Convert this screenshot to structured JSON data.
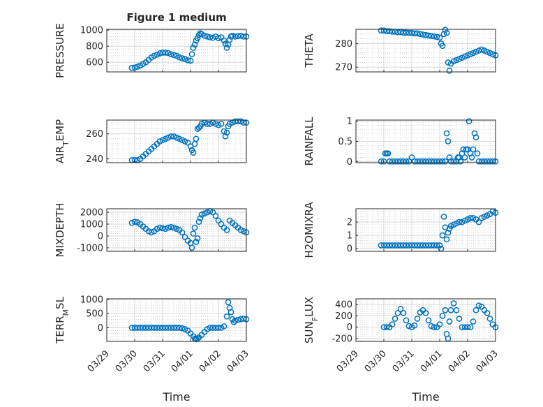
{
  "figure": {
    "title": "Figure 1 medium",
    "xlabel": "Time"
  },
  "colors": {
    "marker": "#0072BD",
    "axis": "#262626",
    "grid": "#bdbdbd"
  },
  "x_tick_labels": [
    "03/29",
    "03/30",
    "03/31",
    "04/01",
    "04/02",
    "04/03"
  ],
  "chart_data": [
    {
      "type": "scatter",
      "ylabel": "PRESSURE",
      "ylim": [
        480,
        1010
      ],
      "yticks": [
        600,
        800,
        1000
      ],
      "ytick_labels": [
        "600",
        "800",
        "1000"
      ],
      "x": [
        0.9,
        1.0,
        1.1,
        1.2,
        1.3,
        1.4,
        1.5,
        1.6,
        1.7,
        1.8,
        1.9,
        2.0,
        2.1,
        2.2,
        2.3,
        2.4,
        2.5,
        2.6,
        2.7,
        2.8,
        2.9,
        3.0,
        3.05,
        3.1,
        3.15,
        3.2,
        3.25,
        3.3,
        3.35,
        3.4,
        3.5,
        3.6,
        3.7,
        3.8,
        3.9,
        4.0,
        4.1,
        4.2,
        4.25,
        4.3,
        4.35,
        4.4,
        4.45,
        4.5,
        4.6,
        4.7,
        4.8,
        4.9,
        5.0
      ],
      "y": [
        530,
        535,
        545,
        560,
        580,
        600,
        630,
        660,
        680,
        695,
        710,
        720,
        720,
        715,
        700,
        690,
        680,
        660,
        650,
        640,
        625,
        620,
        700,
        780,
        820,
        870,
        900,
        940,
        960,
        950,
        930,
        920,
        910,
        905,
        920,
        900,
        910,
        870,
        830,
        780,
        820,
        880,
        920,
        930,
        920,
        925,
        930,
        920,
        920
      ]
    },
    {
      "type": "scatter",
      "ylabel": "THETA",
      "ylim": [
        268,
        286
      ],
      "yticks": [
        270,
        280
      ],
      "ytick_labels": [
        "270",
        "280"
      ],
      "x": [
        0.9,
        1.0,
        1.1,
        1.2,
        1.3,
        1.4,
        1.5,
        1.6,
        1.7,
        1.8,
        1.9,
        2.0,
        2.1,
        2.2,
        2.3,
        2.4,
        2.5,
        2.6,
        2.7,
        2.8,
        2.9,
        3.0,
        3.05,
        3.1,
        3.15,
        3.2,
        3.25,
        3.3,
        3.35,
        3.4,
        3.5,
        3.6,
        3.7,
        3.8,
        3.9,
        4.0,
        4.1,
        4.2,
        4.3,
        4.4,
        4.5,
        4.6,
        4.7,
        4.8,
        4.9,
        5.0
      ],
      "y": [
        285.5,
        285.5,
        285.2,
        285.2,
        285.0,
        285.0,
        284.8,
        284.8,
        284.6,
        284.6,
        284.5,
        284.5,
        284.3,
        284.3,
        284.0,
        283.8,
        283.6,
        283.4,
        283.2,
        283.0,
        282.8,
        282.5,
        280.0,
        279.0,
        284.0,
        285.8,
        284.5,
        272.0,
        268.5,
        271.5,
        272.5,
        273.0,
        273.5,
        274.0,
        274.5,
        275.0,
        275.5,
        276.0,
        276.5,
        277.0,
        277.5,
        277.0,
        276.5,
        276.0,
        275.5,
        275.0
      ]
    },
    {
      "type": "scatter",
      "ylabel": "AIR_TEMP",
      "ylim": [
        237,
        271
      ],
      "yticks": [
        240,
        260
      ],
      "ytick_labels": [
        "240",
        "260"
      ],
      "x": [
        0.9,
        1.0,
        1.1,
        1.2,
        1.3,
        1.4,
        1.5,
        1.6,
        1.7,
        1.8,
        1.9,
        2.0,
        2.1,
        2.2,
        2.3,
        2.4,
        2.5,
        2.6,
        2.7,
        2.8,
        2.9,
        3.0,
        3.05,
        3.1,
        3.15,
        3.2,
        3.25,
        3.3,
        3.35,
        3.4,
        3.5,
        3.6,
        3.7,
        3.8,
        3.9,
        4.0,
        4.1,
        4.2,
        4.25,
        4.3,
        4.35,
        4.4,
        4.5,
        4.6,
        4.7,
        4.8,
        4.9,
        5.0
      ],
      "y": [
        239,
        239,
        239,
        240,
        242,
        244,
        246,
        248,
        250,
        252,
        254,
        255,
        256,
        257,
        258,
        258,
        257,
        256,
        255,
        254,
        253,
        250,
        247,
        245,
        252,
        256,
        264,
        265,
        266,
        268,
        269,
        268,
        268,
        269,
        268,
        267,
        268,
        262,
        258,
        261,
        266,
        268,
        269,
        270,
        270,
        270,
        269,
        269
      ]
    },
    {
      "type": "scatter",
      "ylabel": "RAINFALL",
      "ylim": [
        -0.03,
        1.03
      ],
      "yticks": [
        0,
        0.5,
        1
      ],
      "ytick_labels": [
        "0",
        "0.5",
        "1"
      ],
      "x": [
        0.9,
        1.0,
        1.05,
        1.1,
        1.15,
        1.2,
        1.3,
        1.4,
        1.5,
        1.6,
        1.7,
        1.8,
        1.9,
        2.0,
        2.1,
        2.2,
        2.3,
        2.4,
        2.5,
        2.6,
        2.7,
        2.8,
        2.9,
        3.0,
        3.1,
        3.2,
        3.25,
        3.3,
        3.35,
        3.4,
        3.5,
        3.6,
        3.65,
        3.7,
        3.75,
        3.8,
        3.85,
        3.9,
        3.95,
        4.0,
        4.05,
        4.1,
        4.15,
        4.2,
        4.25,
        4.3,
        4.35,
        4.4,
        4.5,
        4.6,
        4.7,
        4.8,
        4.9,
        5.0
      ],
      "y": [
        0,
        0,
        0.2,
        0.2,
        0.2,
        0,
        0,
        0,
        0,
        0,
        0,
        0,
        0,
        0.1,
        0,
        0,
        0,
        0,
        0,
        0,
        0,
        0,
        0,
        0,
        0,
        0,
        0.7,
        0.5,
        0.1,
        0,
        0,
        0,
        0.1,
        0.1,
        0,
        0.2,
        0.3,
        0.1,
        0.3,
        0.3,
        1.0,
        0.2,
        0.1,
        0.3,
        0.7,
        0.6,
        0.2,
        0,
        0,
        0,
        0,
        0,
        0,
        0
      ]
    },
    {
      "type": "scatter",
      "ylabel": "MIXDEPTH",
      "ylim": [
        -1300,
        2300
      ],
      "yticks": [
        -1000,
        0,
        1000,
        2000
      ],
      "ytick_labels": [
        "-1000",
        "0",
        "1000",
        "2000"
      ],
      "x": [
        0.9,
        1.0,
        1.1,
        1.2,
        1.3,
        1.4,
        1.5,
        1.6,
        1.7,
        1.8,
        1.9,
        2.0,
        2.1,
        2.2,
        2.3,
        2.4,
        2.5,
        2.6,
        2.7,
        2.8,
        2.9,
        3.0,
        3.05,
        3.1,
        3.15,
        3.2,
        3.25,
        3.3,
        3.35,
        3.4,
        3.5,
        3.6,
        3.7,
        3.8,
        3.9,
        4.0,
        4.1,
        4.2,
        4.3,
        4.4,
        4.5,
        4.6,
        4.7,
        4.8,
        4.9,
        5.0
      ],
      "y": [
        1100,
        1200,
        1150,
        1000,
        800,
        600,
        400,
        300,
        400,
        600,
        700,
        650,
        600,
        700,
        750,
        700,
        600,
        500,
        300,
        -100,
        -400,
        -600,
        -1000,
        200,
        700,
        -500,
        -200,
        1200,
        1500,
        1800,
        1900,
        2000,
        2100,
        2000,
        1700,
        1300,
        1000,
        700,
        500,
        1300,
        1100,
        900,
        700,
        500,
        400,
        300
      ]
    },
    {
      "type": "scatter",
      "ylabel": "H2OMIXRA",
      "ylim": [
        -0.2,
        3.0
      ],
      "yticks": [
        0,
        1,
        2
      ],
      "ytick_labels": [
        "0",
        "1",
        "2"
      ],
      "x": [
        0.9,
        1.0,
        1.1,
        1.2,
        1.3,
        1.4,
        1.5,
        1.6,
        1.7,
        1.8,
        1.9,
        2.0,
        2.1,
        2.2,
        2.3,
        2.4,
        2.5,
        2.6,
        2.7,
        2.8,
        2.9,
        3.0,
        3.05,
        3.1,
        3.15,
        3.2,
        3.25,
        3.3,
        3.35,
        3.4,
        3.5,
        3.6,
        3.7,
        3.8,
        3.9,
        4.0,
        4.1,
        4.2,
        4.3,
        4.4,
        4.5,
        4.6,
        4.7,
        4.8,
        4.9,
        5.0
      ],
      "y": [
        0.25,
        0.25,
        0.25,
        0.25,
        0.25,
        0.25,
        0.25,
        0.25,
        0.25,
        0.25,
        0.25,
        0.25,
        0.25,
        0.25,
        0.25,
        0.25,
        0.25,
        0.25,
        0.25,
        0.25,
        0.25,
        0.25,
        0.0,
        1.0,
        2.4,
        1.6,
        0.7,
        1.2,
        1.5,
        1.7,
        1.8,
        1.9,
        2.0,
        2.0,
        2.1,
        2.2,
        2.3,
        2.3,
        2.2,
        2.0,
        2.3,
        2.4,
        2.5,
        2.6,
        2.8,
        2.7
      ]
    },
    {
      "type": "scatter",
      "ylabel": "TERR_MSL",
      "ylim": [
        -480,
        1020
      ],
      "yticks": [
        0,
        500,
        1000
      ],
      "ytick_labels": [
        "0",
        "500",
        "1000"
      ],
      "x": [
        0.9,
        1.0,
        1.1,
        1.2,
        1.3,
        1.4,
        1.5,
        1.6,
        1.7,
        1.8,
        1.9,
        2.0,
        2.1,
        2.2,
        2.3,
        2.4,
        2.5,
        2.6,
        2.7,
        2.8,
        2.9,
        3.0,
        3.1,
        3.15,
        3.2,
        3.25,
        3.3,
        3.4,
        3.5,
        3.6,
        3.7,
        3.8,
        3.9,
        4.0,
        4.1,
        4.2,
        4.3,
        4.35,
        4.4,
        4.45,
        4.5,
        4.55,
        4.6,
        4.7,
        4.8,
        4.9,
        5.0
      ],
      "y": [
        0,
        0,
        0,
        0,
        0,
        0,
        0,
        0,
        0,
        0,
        0,
        0,
        0,
        0,
        0,
        0,
        0,
        0,
        -20,
        -50,
        -100,
        -200,
        -300,
        -380,
        -400,
        -380,
        -340,
        -250,
        -150,
        -50,
        0,
        0,
        0,
        0,
        0,
        50,
        400,
        900,
        700,
        550,
        300,
        200,
        250,
        280,
        300,
        320,
        300
      ]
    },
    {
      "type": "scatter",
      "ylabel": "SUN_FLUX",
      "ylim": [
        -250,
        500
      ],
      "yticks": [
        -200,
        0,
        200,
        400
      ],
      "ytick_labels": [
        "-200",
        "0",
        "200",
        "400"
      ],
      "x": [
        1.0,
        1.1,
        1.2,
        1.3,
        1.4,
        1.5,
        1.6,
        1.7,
        1.8,
        1.9,
        2.0,
        2.1,
        2.2,
        2.3,
        2.4,
        2.5,
        2.6,
        2.7,
        2.8,
        2.9,
        3.0,
        3.1,
        3.2,
        3.25,
        3.3,
        3.35,
        3.4,
        3.5,
        3.6,
        3.7,
        3.8,
        3.9,
        4.0,
        4.1,
        4.2,
        4.3,
        4.4,
        4.5,
        4.6,
        4.7,
        4.8,
        4.9,
        5.0
      ],
      "y": [
        0,
        0,
        0,
        50,
        150,
        250,
        320,
        250,
        120,
        20,
        0,
        30,
        150,
        260,
        300,
        250,
        120,
        20,
        0,
        0,
        50,
        200,
        300,
        -120,
        -200,
        100,
        300,
        420,
        300,
        150,
        0,
        0,
        0,
        0,
        100,
        300,
        380,
        360,
        300,
        250,
        150,
        50,
        0
      ]
    }
  ]
}
